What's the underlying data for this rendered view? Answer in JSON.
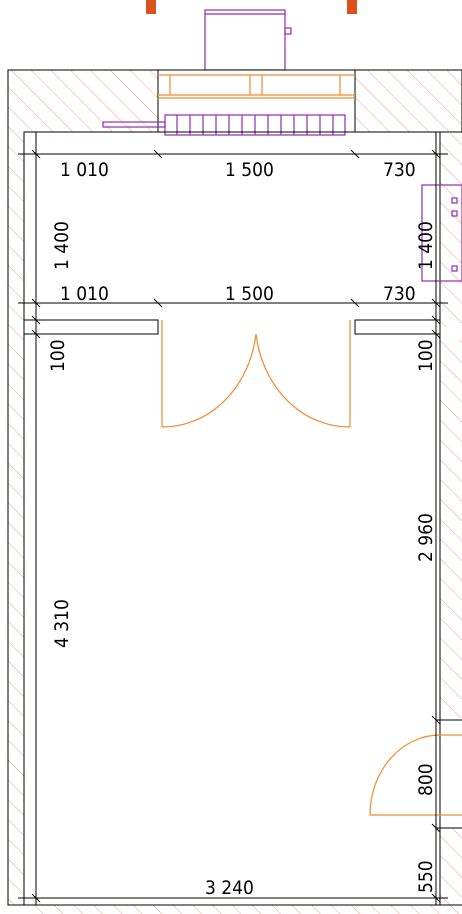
{
  "plan": {
    "colors": {
      "wall_hatch": "#f4a08a",
      "door": "#f28a2e",
      "furniture": "#8e2bb8",
      "marker": "#d9531e",
      "lines": "#000000"
    },
    "dimensions": {
      "top_left": "1 010",
      "top_mid": "1 500",
      "top_right": "730",
      "vestibule_left": "1 400",
      "vestibule_right": "1 400",
      "mid_left": "1 010",
      "mid_mid": "1 500",
      "mid_right": "730",
      "wall_left": "100",
      "wall_right": "100",
      "room_right": "2 960",
      "room_left": "4 310",
      "door_right": "800",
      "corner_right": "550",
      "bottom_width": "3 240"
    }
  }
}
